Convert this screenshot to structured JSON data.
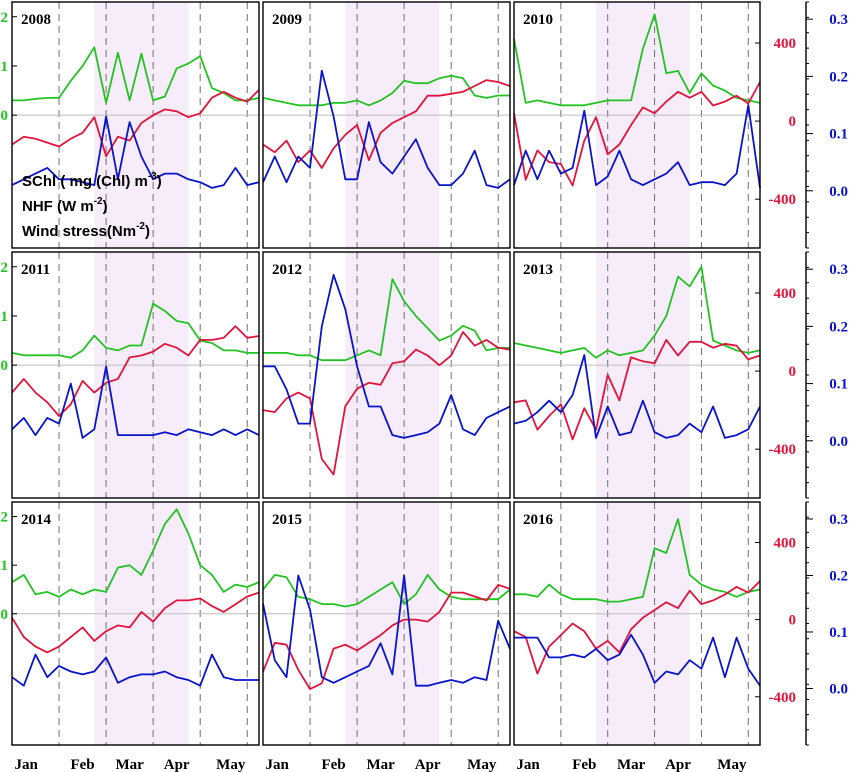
{
  "colors": {
    "schl": "#22c322",
    "nhf": "#e0143c",
    "wind": "#0a14c8",
    "shade": "#f7ecfa",
    "dash": "#707070",
    "zero": "#bdbdbd"
  },
  "legend": {
    "schl": {
      "main": "SChl ( mg (Chl) m",
      "sup": "-3",
      "tail": ")"
    },
    "nhf": {
      "main": "NHF (W m",
      "sup": "-2",
      "tail": ")"
    },
    "wind": {
      "main": "Wind stress(Nm",
      "sup": "-2",
      "tail": ")"
    }
  },
  "x_axis": {
    "month_labels": [
      "Jan",
      "Feb",
      "Mar",
      "Apr",
      "May"
    ],
    "dashed_lines_at_week": [
      5,
      9,
      13,
      17,
      21
    ]
  },
  "left_axis": {
    "ticks": [
      0,
      1,
      2
    ],
    "range": [
      -2.7,
      2.3
    ]
  },
  "right_red_axis": {
    "ticks": [
      "-400",
      "0",
      "400"
    ],
    "values": [
      -400,
      0,
      400
    ],
    "range": [
      -650,
      610
    ]
  },
  "right_blue_axis": {
    "ticks": [
      "0.0",
      "0.1",
      "0.2",
      "0.3"
    ],
    "values": [
      0.0,
      0.1,
      0.2,
      0.3
    ],
    "range": [
      -0.1,
      0.33
    ]
  },
  "chart_data": [
    {
      "type": "line",
      "title": "2008",
      "shade_weeks": [
        8,
        16
      ],
      "series": [
        {
          "name": "SChl ( mg (Chl) m-3)",
          "values": [
            0.3,
            0.3,
            0.33,
            0.35,
            0.35,
            0.7,
            1.0,
            1.38,
            0.25,
            1.27,
            0.3,
            1.25,
            0.3,
            0.38,
            0.95,
            1.05,
            1.2,
            0.55,
            0.45,
            0.3,
            0.3,
            0.35
          ]
        },
        {
          "name": "NHF (W m-2)",
          "values": [
            -120,
            -80,
            -90,
            -110,
            -130,
            -90,
            -60,
            20,
            -180,
            -80,
            -100,
            -10,
            30,
            60,
            50,
            20,
            40,
            120,
            150,
            120,
            100,
            160
          ]
        },
        {
          "name": "Wind stress(Nm-2)",
          "values": [
            0.01,
            0.02,
            0.03,
            0.04,
            0.02,
            0.02,
            0.015,
            0.01,
            0.13,
            0.02,
            0.12,
            0.06,
            0.02,
            0.03,
            0.03,
            0.02,
            0.015,
            0.005,
            0.01,
            0.04,
            0.01,
            0.015
          ]
        }
      ]
    },
    {
      "type": "line",
      "title": "2009",
      "shade_weeks": [
        8,
        16
      ],
      "series": [
        {
          "name": "SChl ( mg (Chl) m-3)",
          "values": [
            0.35,
            0.3,
            0.25,
            0.2,
            0.2,
            0.2,
            0.25,
            0.25,
            0.3,
            0.2,
            0.3,
            0.45,
            0.7,
            0.65,
            0.65,
            0.75,
            0.8,
            0.75,
            0.4,
            0.35,
            0.4,
            0.4
          ]
        },
        {
          "name": "NHF (W m-2)",
          "values": [
            -120,
            -160,
            -100,
            -210,
            -150,
            -240,
            -140,
            -70,
            -20,
            -200,
            -60,
            -10,
            20,
            50,
            130,
            130,
            140,
            150,
            180,
            210,
            200,
            180
          ]
        },
        {
          "name": "Wind stress(Nm-2)",
          "values": [
            0.015,
            0.06,
            0.015,
            0.06,
            0.04,
            0.21,
            0.13,
            0.02,
            0.02,
            0.12,
            0.05,
            0.03,
            0.06,
            0.09,
            0.04,
            0.01,
            0.01,
            0.03,
            0.07,
            0.01,
            0.005,
            0.02
          ]
        }
      ]
    },
    {
      "type": "line",
      "title": "2010",
      "shade_weeks": [
        8,
        16
      ],
      "series": [
        {
          "name": "SChl ( mg (Chl) m-3)",
          "values": [
            1.55,
            0.25,
            0.3,
            0.25,
            0.2,
            0.2,
            0.2,
            0.25,
            0.3,
            0.3,
            0.3,
            1.35,
            2.05,
            0.85,
            0.9,
            0.45,
            0.85,
            0.6,
            0.5,
            0.35,
            0.3,
            0.25
          ]
        },
        {
          "name": "NHF (W m-2)",
          "values": [
            40,
            -300,
            -150,
            -210,
            -220,
            -330,
            -100,
            20,
            -170,
            -120,
            -20,
            70,
            40,
            100,
            150,
            120,
            150,
            80,
            100,
            130,
            90,
            200
          ]
        },
        {
          "name": "Wind stress(Nm-2)",
          "values": [
            0.01,
            0.07,
            0.02,
            0.07,
            0.03,
            0.04,
            0.14,
            0.01,
            0.025,
            0.07,
            0.02,
            0.01,
            0.02,
            0.03,
            0.05,
            0.01,
            0.015,
            0.015,
            0.01,
            0.03,
            0.15,
            0.005
          ]
        }
      ]
    },
    {
      "type": "line",
      "title": "2011",
      "shade_weeks": [
        8,
        16
      ],
      "series": [
        {
          "name": "SChl ( mg (Chl) m-3)",
          "values": [
            0.25,
            0.2,
            0.2,
            0.2,
            0.2,
            0.15,
            0.3,
            0.6,
            0.35,
            0.3,
            0.4,
            0.4,
            1.25,
            1.1,
            0.9,
            0.85,
            0.5,
            0.45,
            0.3,
            0.3,
            0.25,
            0.25
          ]
        },
        {
          "name": "NHF (W m-2)",
          "values": [
            -110,
            -40,
            -110,
            -160,
            -230,
            -170,
            -50,
            -110,
            -60,
            -40,
            70,
            80,
            100,
            140,
            120,
            80,
            160,
            160,
            170,
            230,
            170,
            180
          ]
        },
        {
          "name": "Wind stress(Nm-2)",
          "values": [
            0.02,
            0.04,
            0.01,
            0.04,
            0.03,
            0.1,
            0.005,
            0.02,
            0.13,
            0.01,
            0.01,
            0.01,
            0.01,
            0.015,
            0.01,
            0.02,
            0.015,
            0.01,
            0.02,
            0.01,
            0.02,
            0.01
          ]
        }
      ]
    },
    {
      "type": "line",
      "title": "2012",
      "shade_weeks": [
        8,
        16
      ],
      "series": [
        {
          "name": "SChl ( mg (Chl) m-3)",
          "values": [
            0.25,
            0.25,
            0.25,
            0.2,
            0.2,
            0.1,
            0.1,
            0.1,
            0.2,
            0.3,
            0.2,
            1.75,
            1.3,
            1.0,
            0.75,
            0.5,
            0.6,
            0.8,
            0.7,
            0.3,
            0.35,
            0.35
          ]
        },
        {
          "name": "NHF (W m-2)",
          "values": [
            -200,
            -210,
            -140,
            -110,
            -140,
            -450,
            -530,
            -180,
            -90,
            -60,
            -70,
            40,
            50,
            110,
            80,
            30,
            80,
            200,
            130,
            160,
            120,
            110
          ]
        },
        {
          "name": "Wind stress(Nm-2)",
          "values": [
            0.13,
            0.13,
            0.09,
            0.03,
            0.03,
            0.2,
            0.29,
            0.23,
            0.13,
            0.06,
            0.06,
            0.01,
            0.005,
            0.01,
            0.015,
            0.03,
            0.08,
            0.02,
            0.01,
            0.04,
            0.05,
            0.06
          ]
        }
      ]
    },
    {
      "type": "line",
      "title": "2013",
      "shade_weeks": [
        8,
        16
      ],
      "series": [
        {
          "name": "SChl ( mg (Chl) m-3)",
          "values": [
            0.45,
            0.4,
            0.35,
            0.3,
            0.25,
            0.3,
            0.35,
            0.15,
            0.3,
            0.2,
            0.25,
            0.3,
            0.6,
            1.0,
            1.8,
            1.6,
            2.0,
            0.5,
            0.4,
            0.3,
            0.25,
            0.3
          ]
        },
        {
          "name": "NHF (W m-2)",
          "values": [
            -160,
            -150,
            -300,
            -230,
            -170,
            -350,
            -190,
            -300,
            -20,
            -150,
            70,
            50,
            40,
            160,
            80,
            150,
            150,
            120,
            140,
            130,
            60,
            80
          ]
        },
        {
          "name": "Wind stress(Nm-2)",
          "values": [
            0.03,
            0.035,
            0.05,
            0.07,
            0.05,
            0.08,
            0.15,
            0.005,
            0.06,
            0.01,
            0.015,
            0.07,
            0.015,
            0.005,
            0.01,
            0.03,
            0.015,
            0.06,
            0.005,
            0.01,
            0.02,
            0.06
          ]
        }
      ]
    },
    {
      "type": "line",
      "title": "2014",
      "shade_weeks": [
        8,
        16
      ],
      "series": [
        {
          "name": "SChl ( mg (Chl) m-3)",
          "values": [
            0.65,
            0.8,
            0.4,
            0.45,
            0.35,
            0.5,
            0.4,
            0.5,
            0.45,
            0.95,
            1.0,
            0.8,
            1.3,
            1.85,
            2.15,
            1.65,
            1.0,
            0.8,
            0.45,
            0.6,
            0.55,
            0.65
          ]
        },
        {
          "name": "NHF (W m-2)",
          "values": [
            10,
            -90,
            -140,
            -170,
            -140,
            -90,
            -40,
            -110,
            -60,
            -30,
            -40,
            40,
            -10,
            60,
            100,
            100,
            110,
            70,
            40,
            80,
            120,
            140
          ]
        },
        {
          "name": "Wind stress(Nm-2)",
          "values": [
            0.02,
            0.005,
            0.06,
            0.02,
            0.04,
            0.03,
            0.025,
            0.03,
            0.055,
            0.01,
            0.02,
            0.025,
            0.025,
            0.03,
            0.02,
            0.015,
            0.005,
            0.06,
            0.02,
            0.015,
            0.015,
            0.015
          ]
        }
      ]
    },
    {
      "type": "line",
      "title": "2015",
      "shade_weeks": [
        8,
        16
      ],
      "series": [
        {
          "name": "SChl ( mg (Chl) m-3)",
          "values": [
            0.5,
            0.8,
            0.75,
            0.35,
            0.3,
            0.2,
            0.2,
            0.15,
            0.2,
            0.35,
            0.5,
            0.65,
            0.2,
            0.4,
            0.8,
            0.5,
            0.35,
            0.3,
            0.3,
            0.3,
            0.3,
            0.5
          ]
        },
        {
          "name": "NHF (W m-2)",
          "values": [
            -270,
            -120,
            -130,
            -260,
            -360,
            -330,
            -150,
            -130,
            -160,
            -120,
            -80,
            -30,
            0,
            0,
            -10,
            40,
            140,
            140,
            120,
            100,
            180,
            160
          ]
        },
        {
          "name": "Wind stress(Nm-2)",
          "values": [
            0.15,
            0.05,
            0.02,
            0.2,
            0.14,
            0.02,
            0.01,
            0.02,
            0.03,
            0.04,
            0.08,
            0.025,
            0.2,
            0.005,
            0.005,
            0.01,
            0.015,
            0.01,
            0.02,
            0.015,
            0.12,
            0.07
          ]
        }
      ]
    },
    {
      "type": "line",
      "title": "2016",
      "shade_weeks": [
        8,
        16
      ],
      "series": [
        {
          "name": "SChl ( mg (Chl) m-3)",
          "values": [
            0.4,
            0.4,
            0.35,
            0.6,
            0.4,
            0.3,
            0.3,
            0.3,
            0.25,
            0.25,
            0.3,
            0.35,
            1.35,
            1.25,
            1.95,
            0.8,
            0.6,
            0.5,
            0.45,
            0.35,
            0.45,
            0.5
          ]
        },
        {
          "name": "NHF (W m-2)",
          "values": [
            -60,
            -90,
            -280,
            -140,
            -80,
            -20,
            -60,
            -150,
            -110,
            -170,
            -50,
            10,
            50,
            90,
            60,
            150,
            80,
            100,
            130,
            170,
            140,
            200
          ]
        },
        {
          "name": "Wind stress(Nm-2)",
          "values": [
            0.09,
            0.09,
            0.09,
            0.055,
            0.055,
            0.06,
            0.055,
            0.07,
            0.05,
            0.06,
            0.095,
            0.06,
            0.01,
            0.03,
            0.025,
            0.05,
            0.035,
            0.09,
            0.02,
            0.09,
            0.035,
            0.005
          ]
        }
      ]
    }
  ]
}
